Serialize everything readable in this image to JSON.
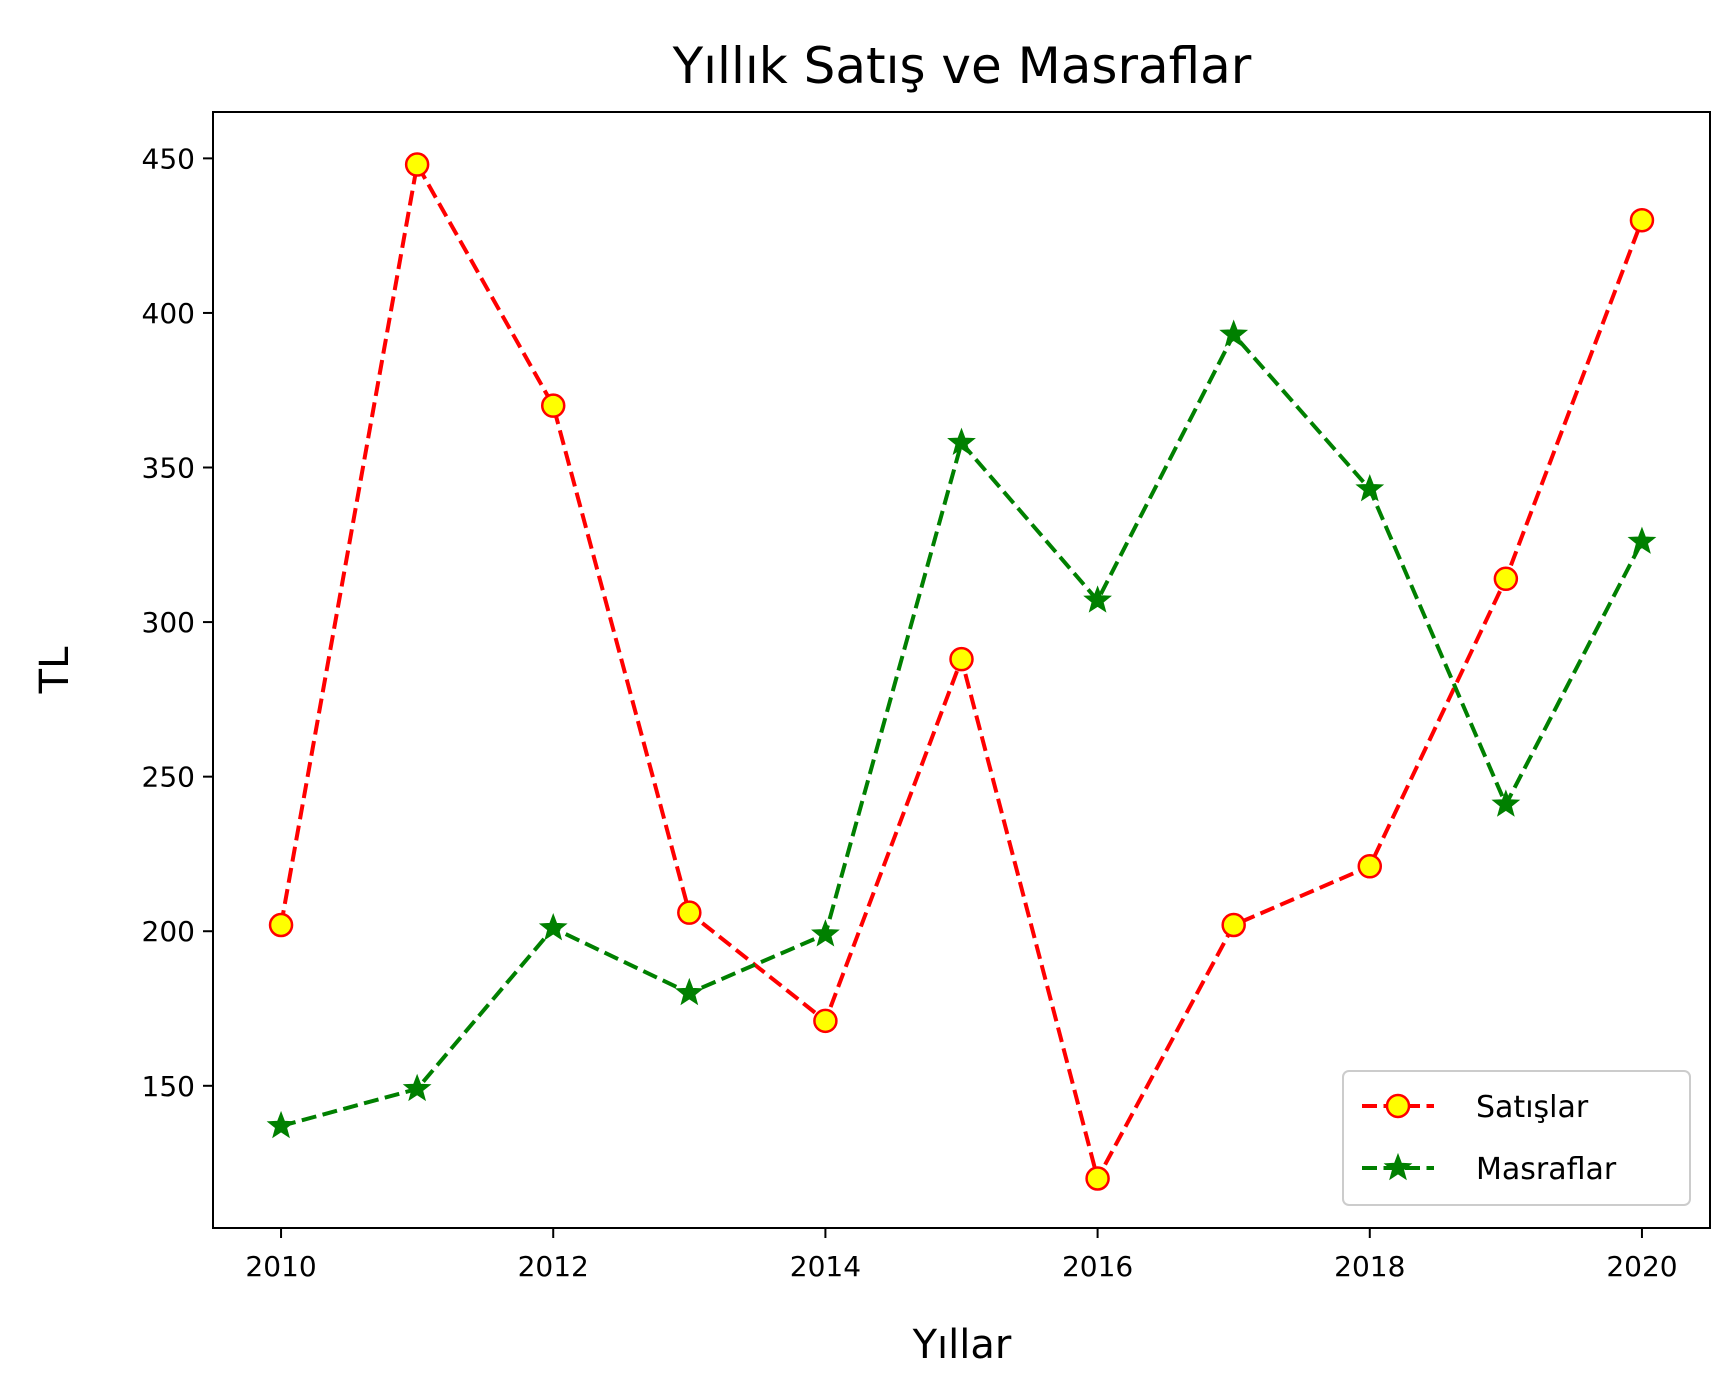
{
  "chart_data": {
    "type": "line",
    "title": "Yıllık Satış ve Masraflar",
    "xlabel": "Yıllar",
    "ylabel": "TL",
    "x": [
      2010,
      2011,
      2012,
      2013,
      2014,
      2015,
      2016,
      2017,
      2018,
      2019,
      2020
    ],
    "xlim": [
      2009.5,
      2020.5
    ],
    "ylim": [
      104,
      465
    ],
    "x_ticks": [
      2010,
      2012,
      2014,
      2016,
      2018,
      2020
    ],
    "y_ticks": [
      150,
      200,
      250,
      300,
      350,
      400,
      450
    ],
    "grid": false,
    "legend_position": "lower-right",
    "series": [
      {
        "name": "Satışlar",
        "values": [
          202,
          448,
          370,
          206,
          171,
          288,
          120,
          202,
          221,
          314,
          430
        ],
        "color": "#ff0000",
        "marker": "circle",
        "marker_face": "#ffff00",
        "line_style": "dashed"
      },
      {
        "name": "Masraflar",
        "values": [
          137,
          149,
          201,
          180,
          199,
          358,
          307,
          393,
          343,
          241,
          326
        ],
        "color": "#008000",
        "marker": "star",
        "marker_face": "#008000",
        "line_style": "dashed"
      }
    ]
  }
}
